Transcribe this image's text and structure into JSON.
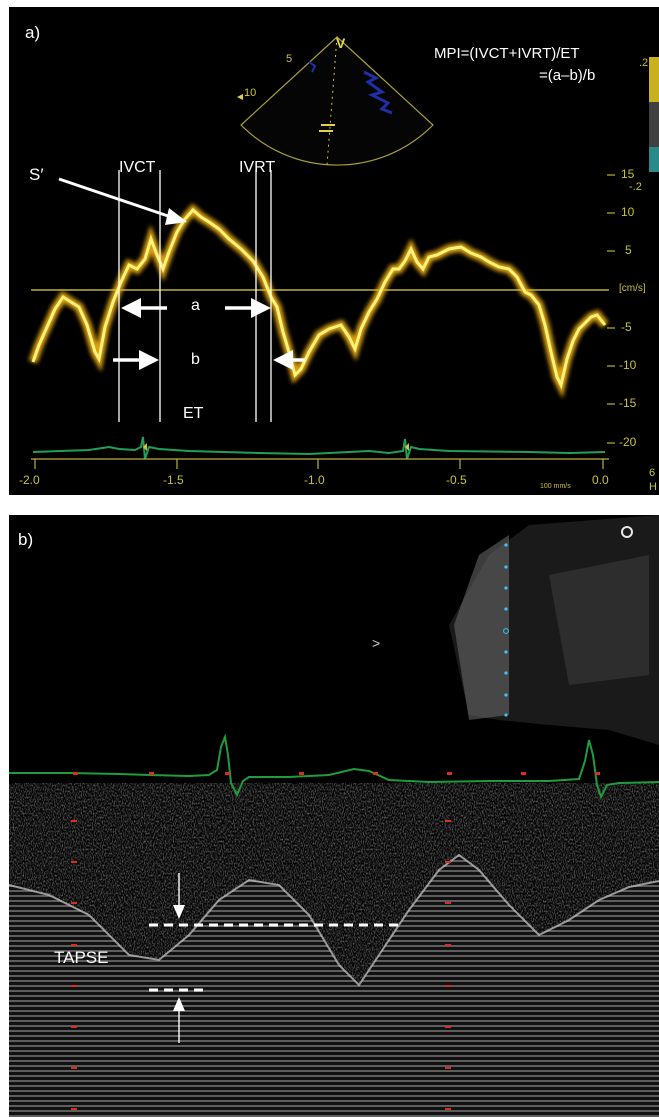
{
  "panel_a": {
    "label": "a)",
    "formula_line1": "MPI=(IVCT+IVRT)/ET",
    "formula_line2": "=(a–b)/b",
    "s_prime": "S′",
    "ivct": "IVCT",
    "ivrt": "IVRT",
    "a": "a",
    "b": "b",
    "et": "ET",
    "sector_marker": "V",
    "sector_depth_5": "5",
    "sector_depth_10": "10",
    "scale_top": ".2",
    "scale_bottom": "-.2",
    "velocity_unit": "[cm/s]",
    "velocity_ticks": [
      "15",
      "10",
      "5",
      "-5",
      "-10",
      "-15",
      "-20"
    ],
    "time_ticks": [
      "-2.0",
      "-1.5",
      "-1.0",
      "-0.5",
      "0.0"
    ],
    "sweep_speed": "100 mm/s",
    "edge_fragments": [
      "6",
      "H"
    ],
    "colors": {
      "doppler_trace": "#e8c21a",
      "ecg": "#1fa05a",
      "axis": "#b9b13a"
    }
  },
  "panel_b": {
    "label": "b)",
    "tapse": "TAPSE",
    "sector_marker": ">",
    "colors": {
      "ecg": "#1f9c3c",
      "markers": "#d8301c",
      "depth_dots": "#3cc8f0"
    }
  }
}
